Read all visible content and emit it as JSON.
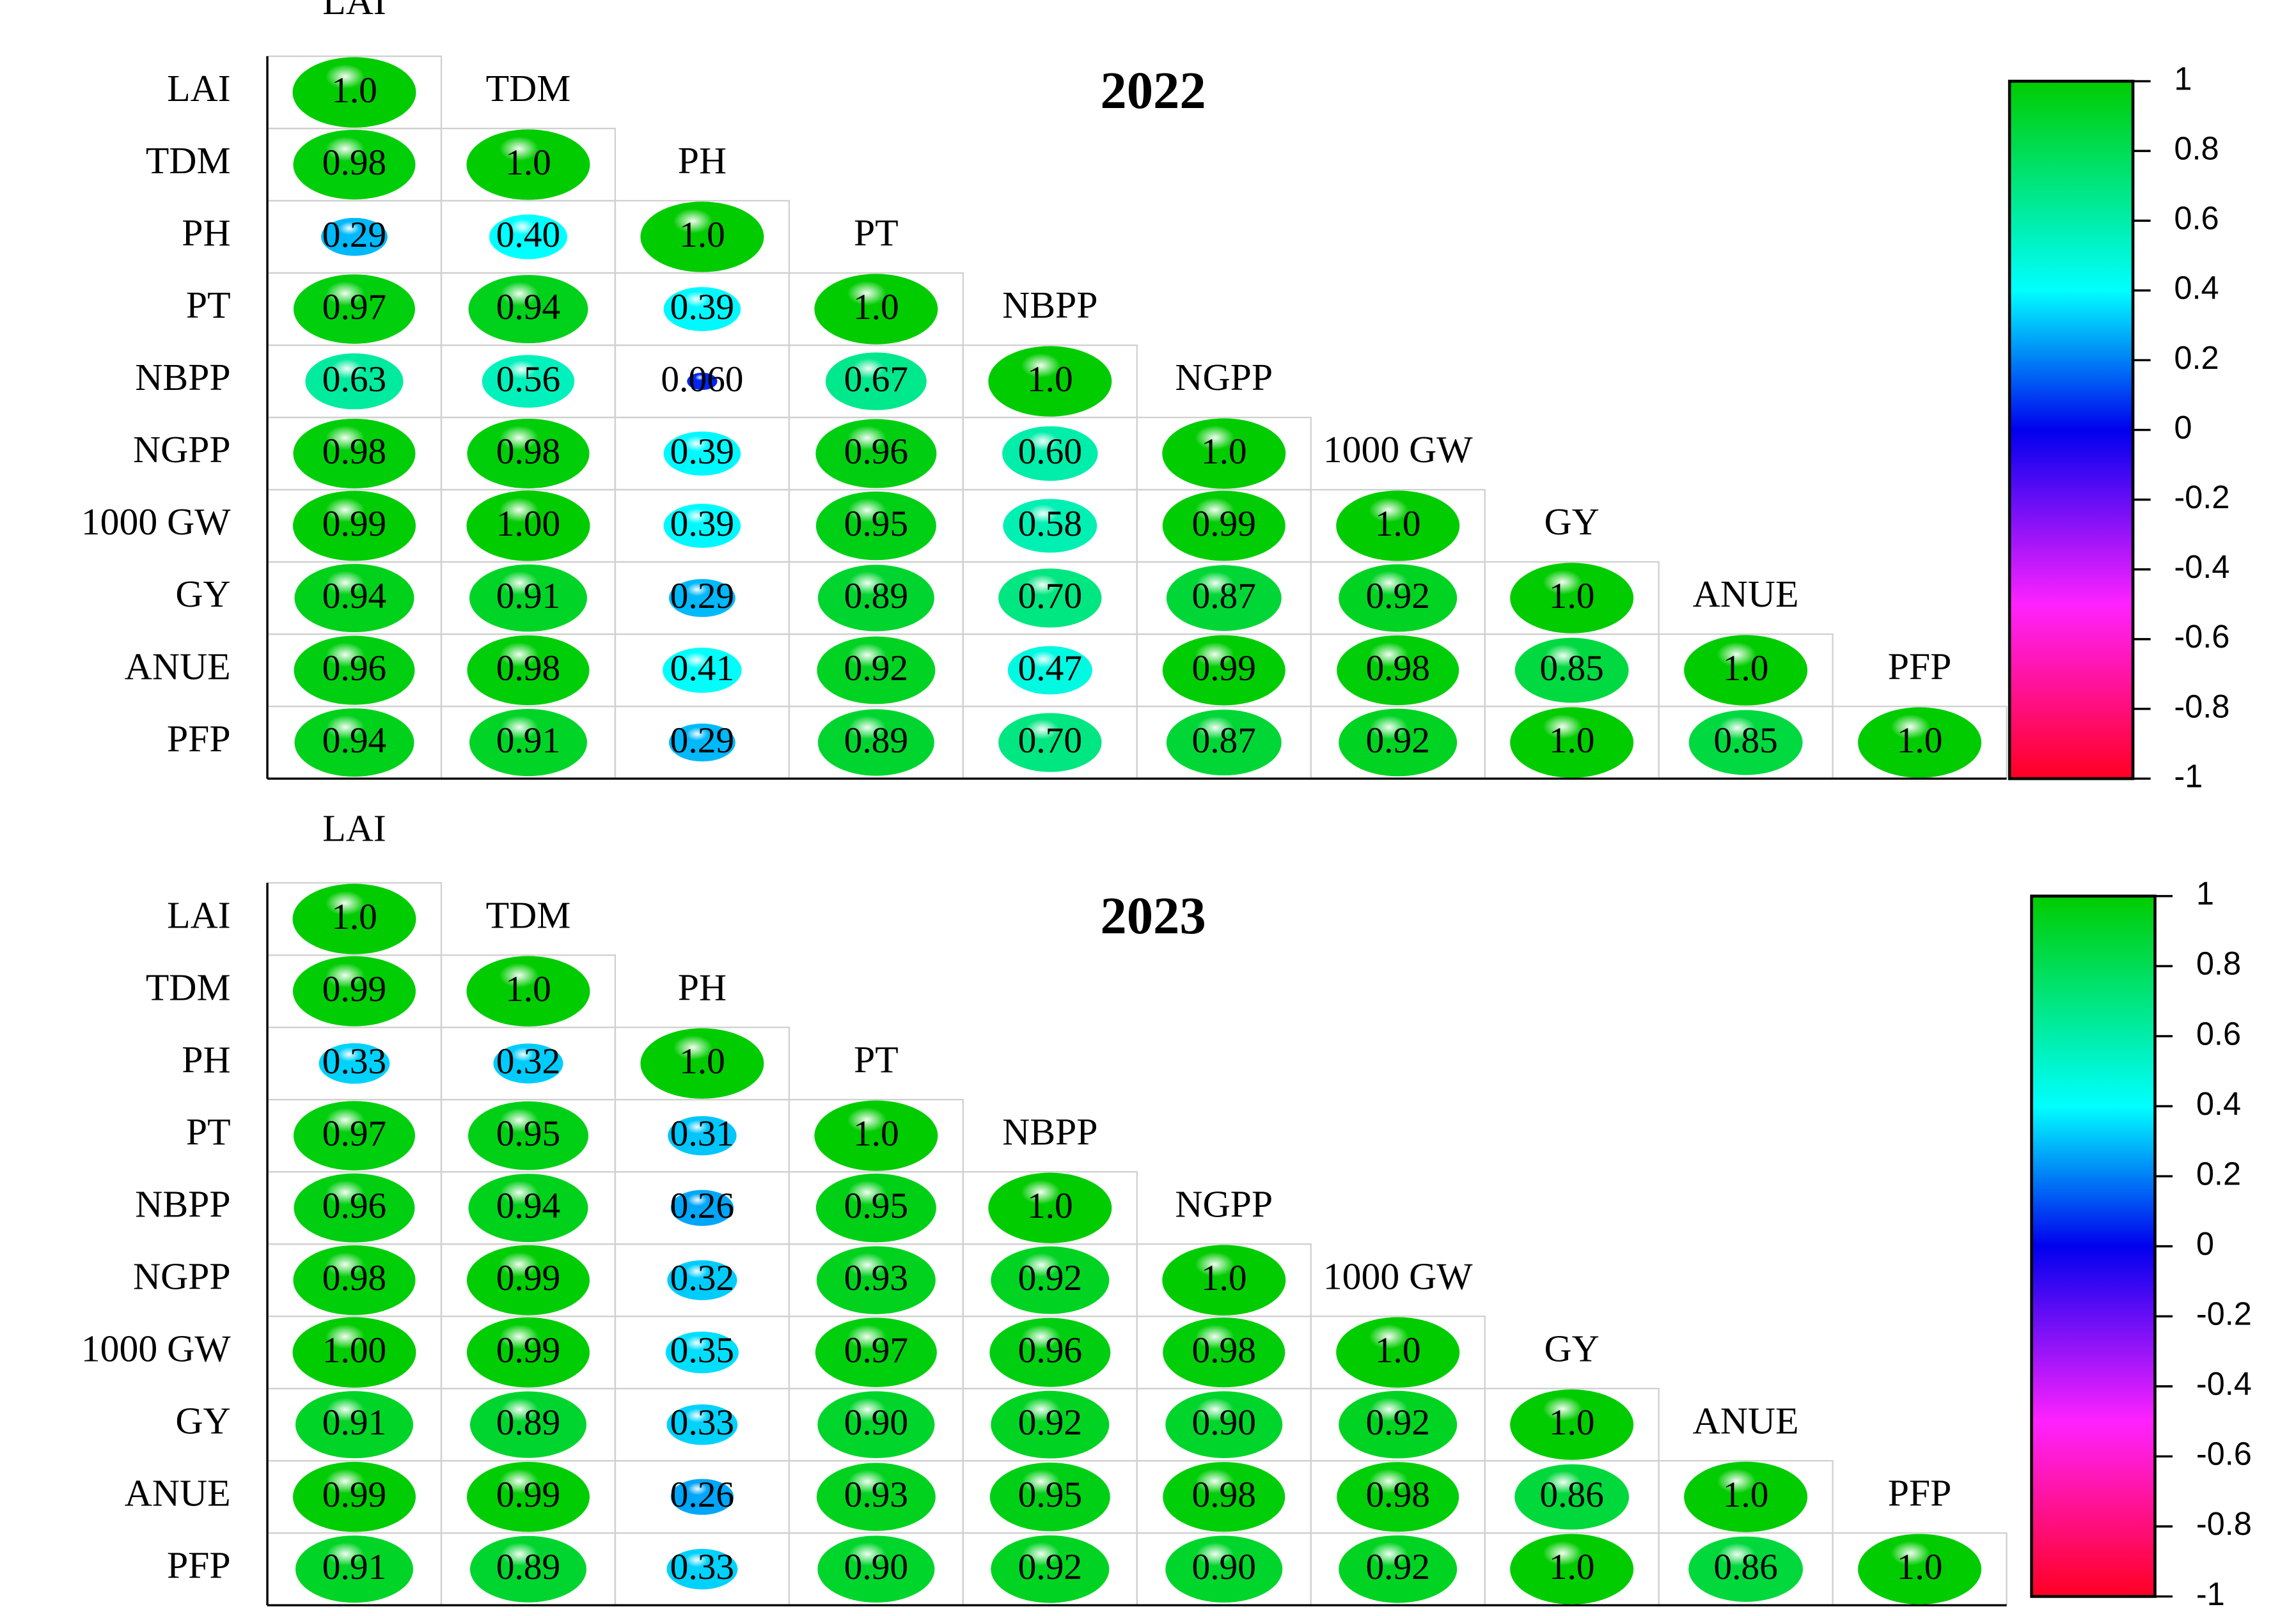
{
  "chart_data": [
    {
      "type": "correlogram",
      "title": "2022",
      "variables": [
        "LAI",
        "TDM",
        "PH",
        "PT",
        "NBPP",
        "NGPP",
        "1000 GW",
        "GY",
        "ANUE",
        "PFP"
      ],
      "values": [
        [
          1.0
        ],
        [
          0.98,
          1.0
        ],
        [
          0.29,
          0.4,
          1.0
        ],
        [
          0.97,
          0.94,
          0.39,
          1.0
        ],
        [
          0.63,
          0.56,
          0.06,
          0.67,
          1.0
        ],
        [
          0.98,
          0.98,
          0.39,
          0.96,
          0.6,
          1.0
        ],
        [
          0.99,
          1.0,
          0.39,
          0.95,
          0.58,
          0.99,
          1.0
        ],
        [
          0.94,
          0.91,
          0.29,
          0.89,
          0.7,
          0.87,
          0.92,
          1.0
        ],
        [
          0.96,
          0.98,
          0.41,
          0.92,
          0.47,
          0.99,
          0.98,
          0.85,
          1.0
        ],
        [
          0.94,
          0.91,
          0.29,
          0.89,
          0.7,
          0.87,
          0.92,
          1.0,
          0.85,
          1.0
        ]
      ],
      "value_labels": [
        [
          "1.0"
        ],
        [
          "0.98",
          "1.0"
        ],
        [
          "0.29",
          "0.40",
          "1.0"
        ],
        [
          "0.97",
          "0.94",
          "0.39",
          "1.0"
        ],
        [
          "0.63",
          "0.56",
          "0.060",
          "0.67",
          "1.0"
        ],
        [
          "0.98",
          "0.98",
          "0.39",
          "0.96",
          "0.60",
          "1.0"
        ],
        [
          "0.99",
          "1.00",
          "0.39",
          "0.95",
          "0.58",
          "0.99",
          "1.0"
        ],
        [
          "0.94",
          "0.91",
          "0.29",
          "0.89",
          "0.70",
          "0.87",
          "0.92",
          "1.0"
        ],
        [
          "0.96",
          "0.98",
          "0.41",
          "0.92",
          "0.47",
          "0.99",
          "0.98",
          "0.85",
          "1.0"
        ],
        [
          "0.94",
          "0.91",
          "0.29",
          "0.89",
          "0.70",
          "0.87",
          "0.92",
          "1.0",
          "0.85",
          "1.0"
        ]
      ],
      "colorscale": [
        [
          -1,
          "#ff0022"
        ],
        [
          -0.5,
          "#ff22ff"
        ],
        [
          0,
          "#0000ee"
        ],
        [
          0.4,
          "#00ffff"
        ],
        [
          0.8,
          "#00dd55"
        ],
        [
          1,
          "#00cc00"
        ]
      ],
      "ylim": [
        -1,
        1
      ],
      "yticks": [
        1,
        0.8,
        0.6,
        0.4,
        0.2,
        0,
        -0.2,
        -0.4,
        -0.6,
        -0.8,
        -1
      ]
    },
    {
      "type": "correlogram",
      "title": "2023",
      "variables": [
        "LAI",
        "TDM",
        "PH",
        "PT",
        "NBPP",
        "NGPP",
        "1000 GW",
        "GY",
        "ANUE",
        "PFP"
      ],
      "values": [
        [
          1.0
        ],
        [
          0.99,
          1.0
        ],
        [
          0.33,
          0.32,
          1.0
        ],
        [
          0.97,
          0.95,
          0.31,
          1.0
        ],
        [
          0.96,
          0.94,
          0.26,
          0.95,
          1.0
        ],
        [
          0.98,
          0.99,
          0.32,
          0.93,
          0.92,
          1.0
        ],
        [
          1.0,
          0.99,
          0.35,
          0.97,
          0.96,
          0.98,
          1.0
        ],
        [
          0.91,
          0.89,
          0.33,
          0.9,
          0.92,
          0.9,
          0.92,
          1.0
        ],
        [
          0.99,
          0.99,
          0.26,
          0.93,
          0.95,
          0.98,
          0.98,
          0.86,
          1.0
        ],
        [
          0.91,
          0.89,
          0.33,
          0.9,
          0.92,
          0.9,
          0.92,
          1.0,
          0.86,
          1.0
        ]
      ],
      "value_labels": [
        [
          "1.0"
        ],
        [
          "0.99",
          "1.0"
        ],
        [
          "0.33",
          "0.32",
          "1.0"
        ],
        [
          "0.97",
          "0.95",
          "0.31",
          "1.0"
        ],
        [
          "0.96",
          "0.94",
          "0.26",
          "0.95",
          "1.0"
        ],
        [
          "0.98",
          "0.99",
          "0.32",
          "0.93",
          "0.92",
          "1.0"
        ],
        [
          "1.00",
          "0.99",
          "0.35",
          "0.97",
          "0.96",
          "0.98",
          "1.0"
        ],
        [
          "0.91",
          "0.89",
          "0.33",
          "0.90",
          "0.92",
          "0.90",
          "0.92",
          "1.0"
        ],
        [
          "0.99",
          "0.99",
          "0.26",
          "0.93",
          "0.95",
          "0.98",
          "0.98",
          "0.86",
          "1.0"
        ],
        [
          "0.91",
          "0.89",
          "0.33",
          "0.90",
          "0.92",
          "0.90",
          "0.92",
          "1.0",
          "0.86",
          "1.0"
        ]
      ],
      "colorscale": [
        [
          -1,
          "#ff0022"
        ],
        [
          -0.5,
          "#ff22ff"
        ],
        [
          0,
          "#0000ee"
        ],
        [
          0.4,
          "#00ffff"
        ],
        [
          0.8,
          "#00dd55"
        ],
        [
          1,
          "#00cc00"
        ]
      ],
      "ylim": [
        -1,
        1
      ],
      "yticks": [
        1,
        0.8,
        0.6,
        0.4,
        0.2,
        0,
        -0.2,
        -0.4,
        -0.6,
        -0.8,
        -1
      ]
    }
  ]
}
